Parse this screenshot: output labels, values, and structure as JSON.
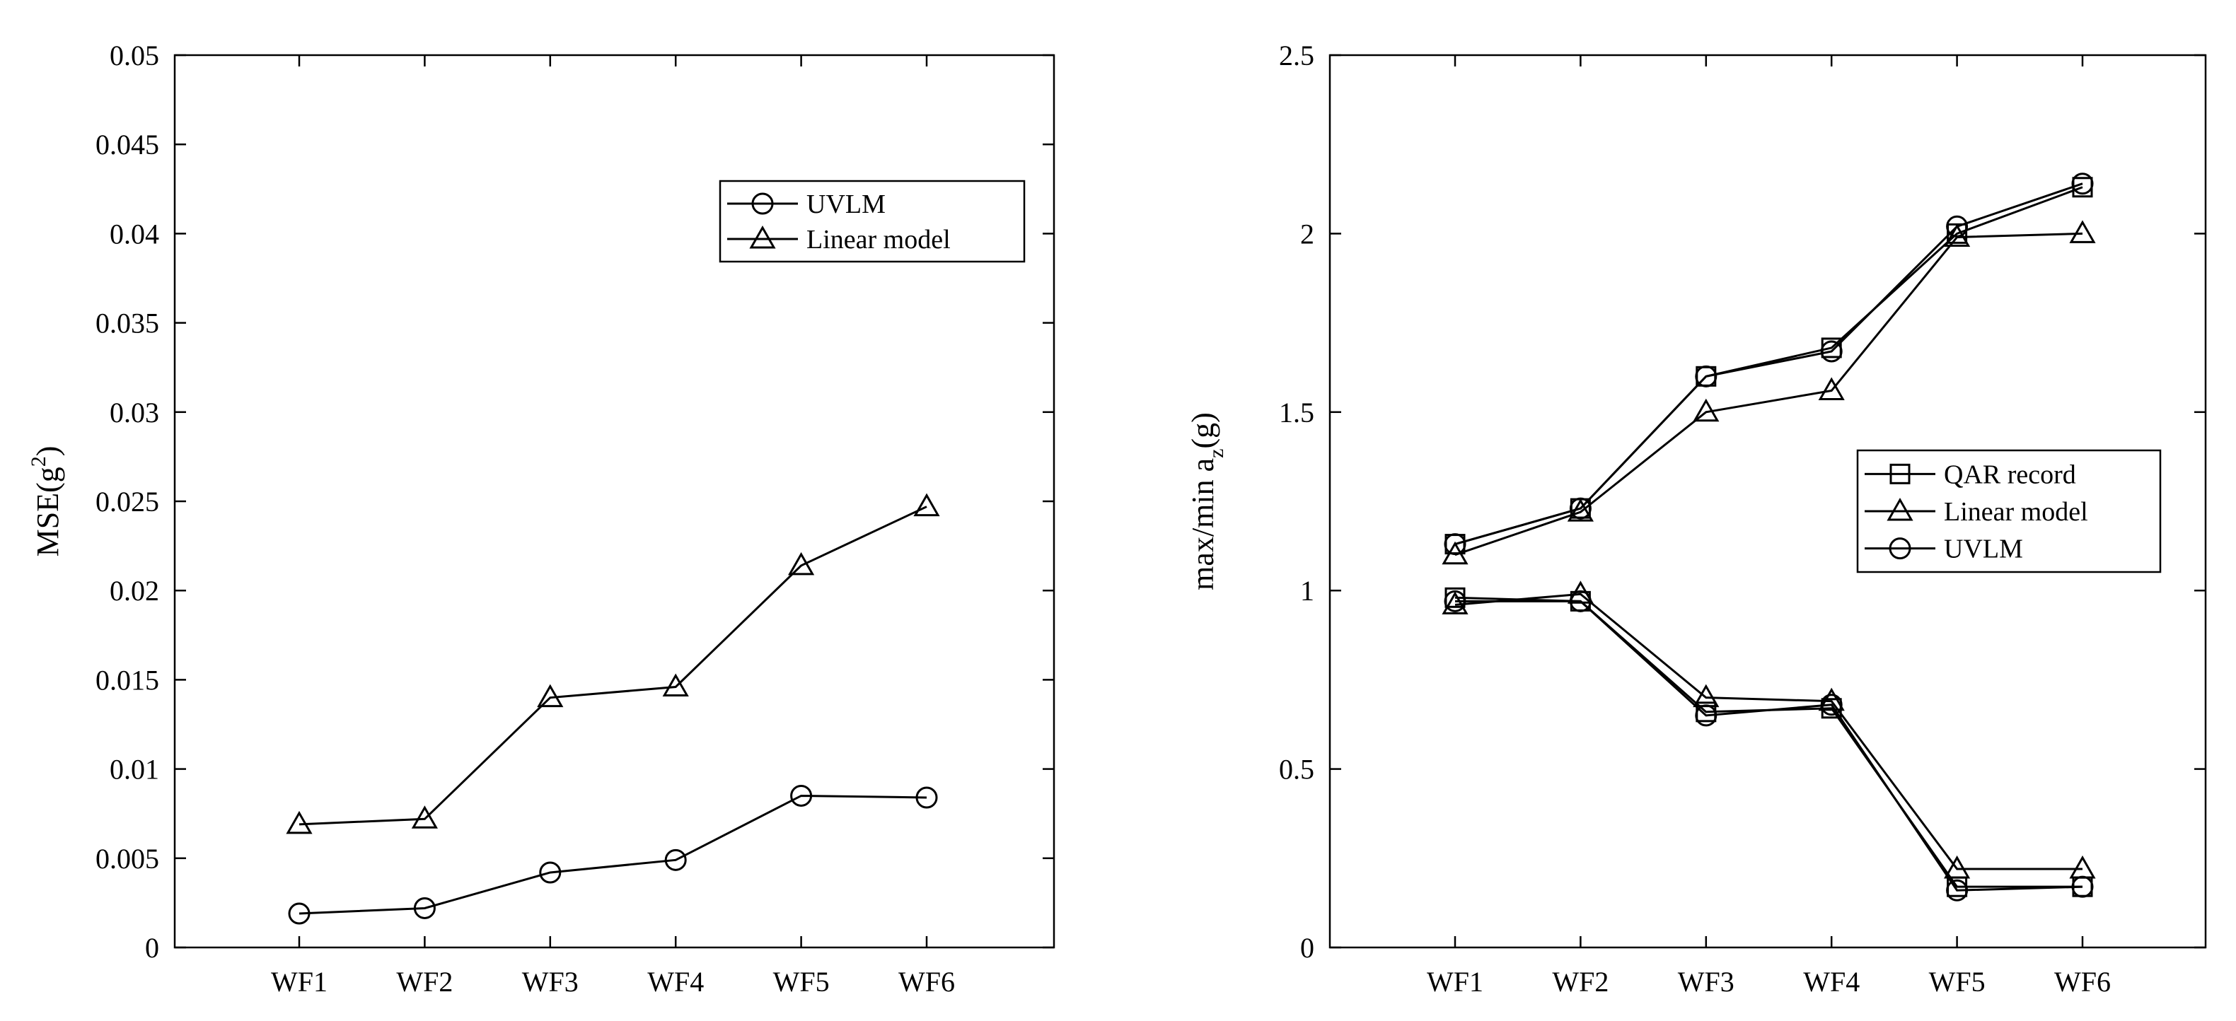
{
  "chart_data": [
    {
      "type": "line",
      "title": "",
      "xlabel": "",
      "ylabel": {
        "main": "MSE(g",
        "sup": "2",
        "close": ")"
      },
      "categories": [
        "WF1",
        "WF2",
        "WF3",
        "WF4",
        "WF5",
        "WF6"
      ],
      "ylim": [
        0,
        0.05
      ],
      "yticks": [
        0,
        0.005,
        0.01,
        0.015,
        0.02,
        0.025,
        0.03,
        0.035,
        0.04,
        0.045,
        0.05
      ],
      "ytick_labels": [
        "0",
        "0.005",
        "0.01",
        "0.015",
        "0.02",
        "0.025",
        "0.03",
        "0.035",
        "0.04",
        "0.045",
        "0.05"
      ],
      "grid": false,
      "legend_position": "top-right",
      "series": [
        {
          "name": "UVLM",
          "marker": "circle",
          "values": [
            0.0019,
            0.0022,
            0.0042,
            0.0049,
            0.0085,
            0.0084
          ]
        },
        {
          "name": "Linear model",
          "marker": "triangle",
          "values": [
            0.0069,
            0.0072,
            0.014,
            0.0146,
            0.0214,
            0.0247
          ]
        }
      ]
    },
    {
      "type": "line",
      "title": "",
      "xlabel": "",
      "ylabel": {
        "main": "max/min a",
        "sub": "z",
        "close": "(g)"
      },
      "categories": [
        "WF1",
        "WF2",
        "WF3",
        "WF4",
        "WF5",
        "WF6"
      ],
      "ylim": [
        0,
        2.5
      ],
      "yticks": [
        0,
        0.5,
        1,
        1.5,
        2,
        2.5
      ],
      "ytick_labels": [
        "0",
        "0.5",
        "1",
        "1.5",
        "2",
        "2.5"
      ],
      "grid": false,
      "legend_position": "center-right",
      "series": [
        {
          "name": "QAR record",
          "marker": "square",
          "group": "max",
          "values": [
            1.13,
            1.23,
            1.6,
            1.68,
            2.0,
            2.13
          ]
        },
        {
          "name": "QAR record",
          "marker": "square",
          "group": "min",
          "values": [
            0.98,
            0.97,
            0.66,
            0.67,
            0.17,
            0.17
          ]
        },
        {
          "name": "Linear model",
          "marker": "triangle",
          "group": "max",
          "values": [
            1.1,
            1.22,
            1.5,
            1.56,
            1.99,
            2.0
          ]
        },
        {
          "name": "Linear model",
          "marker": "triangle",
          "group": "min",
          "values": [
            0.96,
            0.99,
            0.7,
            0.69,
            0.22,
            0.22
          ]
        },
        {
          "name": "UVLM",
          "marker": "circle",
          "group": "max",
          "values": [
            1.13,
            1.23,
            1.6,
            1.67,
            2.02,
            2.14
          ]
        },
        {
          "name": "UVLM",
          "marker": "circle",
          "group": "min",
          "values": [
            0.97,
            0.97,
            0.65,
            0.68,
            0.16,
            0.17
          ]
        }
      ],
      "legend": [
        {
          "name": "QAR record",
          "marker": "square"
        },
        {
          "name": "Linear model",
          "marker": "triangle"
        },
        {
          "name": "UVLM",
          "marker": "circle"
        }
      ]
    }
  ]
}
